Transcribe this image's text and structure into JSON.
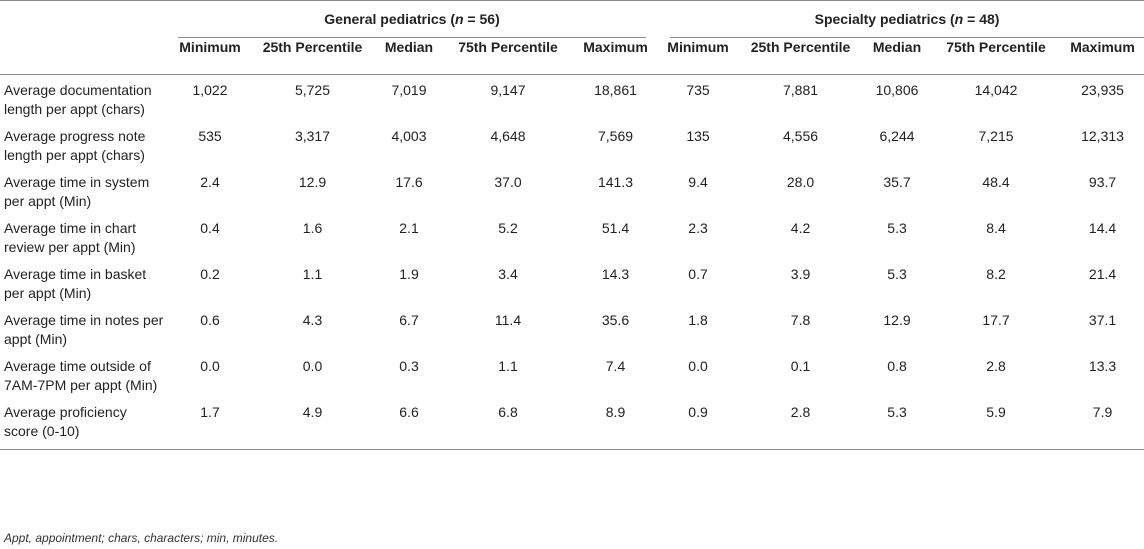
{
  "groups": {
    "general": {
      "prefix": "General pediatrics (",
      "n_var": "n",
      "suffix": " = 56)"
    },
    "specialty": {
      "prefix": "Specialty pediatrics (",
      "n_var": "n",
      "suffix": " = 48)"
    }
  },
  "columns": [
    "Minimum",
    "25th Percentile",
    "Median",
    "75th Percentile",
    "Maximum"
  ],
  "rows": [
    {
      "label": "Average documentation length per appt (chars)",
      "general": [
        "1,022",
        "5,725",
        "7,019",
        "9,147",
        "18,861"
      ],
      "specialty": [
        "735",
        "7,881",
        "10,806",
        "14,042",
        "23,935"
      ]
    },
    {
      "label": "Average progress note length per appt (chars)",
      "general": [
        "535",
        "3,317",
        "4,003",
        "4,648",
        "7,569"
      ],
      "specialty": [
        "135",
        "4,556",
        "6,244",
        "7,215",
        "12,313"
      ]
    },
    {
      "label": "Average time in system per appt (Min)",
      "general": [
        "2.4",
        "12.9",
        "17.6",
        "37.0",
        "141.3"
      ],
      "specialty": [
        "9.4",
        "28.0",
        "35.7",
        "48.4",
        "93.7"
      ]
    },
    {
      "label": "Average time in chart review per appt (Min)",
      "general": [
        "0.4",
        "1.6",
        "2.1",
        "5.2",
        "51.4"
      ],
      "specialty": [
        "2.3",
        "4.2",
        "5.3",
        "8.4",
        "14.4"
      ]
    },
    {
      "label": "Average time in basket per appt (Min)",
      "general": [
        "0.2",
        "1.1",
        "1.9",
        "3.4",
        "14.3"
      ],
      "specialty": [
        "0.7",
        "3.9",
        "5.3",
        "8.2",
        "21.4"
      ]
    },
    {
      "label": "Average time in notes per appt (Min)",
      "general": [
        "0.6",
        "4.3",
        "6.7",
        "11.4",
        "35.6"
      ],
      "specialty": [
        "1.8",
        "7.8",
        "12.9",
        "17.7",
        "37.1"
      ]
    },
    {
      "label": "Average time outside of 7AM-7PM per appt (Min)",
      "general": [
        "0.0",
        "0.0",
        "0.3",
        "1.1",
        "7.4"
      ],
      "specialty": [
        "0.0",
        "0.1",
        "0.8",
        "2.8",
        "13.3"
      ]
    },
    {
      "label": "Average proficiency score (0-10)",
      "general": [
        "1.7",
        "4.9",
        "6.6",
        "6.8",
        "8.9"
      ],
      "specialty": [
        "0.9",
        "2.8",
        "5.3",
        "5.9",
        "7.9"
      ]
    }
  ],
  "footnote": "Appt, appointment; chars, characters; min, minutes."
}
